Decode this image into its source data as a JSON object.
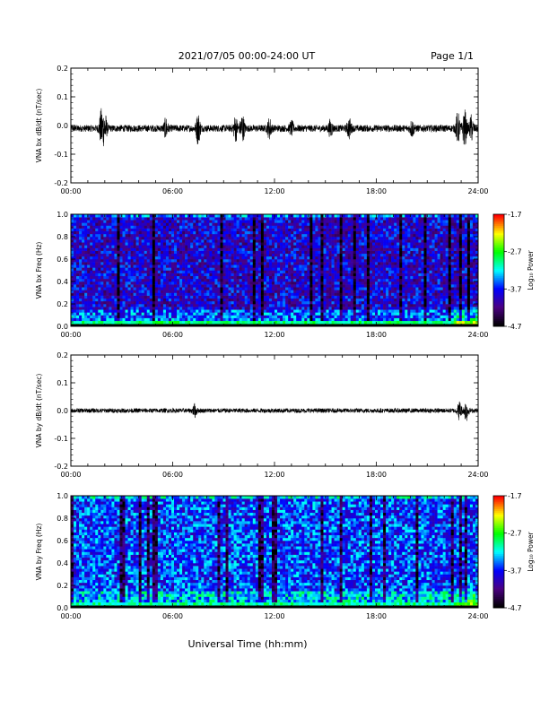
{
  "header": {
    "title": "2021/07/05  00:00-24:00 UT",
    "page": "Page 1/1"
  },
  "colorbar": {
    "label": "Log₁₀ Power",
    "ticks": [
      "-1.7",
      "-2.7",
      "-3.7",
      "-4.7"
    ],
    "range": [
      -4.7,
      -1.7
    ],
    "colors": [
      "#000000",
      "#4b0082",
      "#0000ff",
      "#00ffff",
      "#00ff00",
      "#ffff00",
      "#ff0000"
    ]
  },
  "x_title": "Universal Time (hh:mm)",
  "chart_data": [
    {
      "type": "line",
      "panel": "bx-dbdt",
      "ylabel": "VNA bx dB/dt (nT/sec)",
      "xlabel": "",
      "xlim": [
        0,
        24
      ],
      "ylim": [
        -0.2,
        0.2
      ],
      "xticks": [
        "00:00",
        "06:00",
        "12:00",
        "18:00",
        "24:00"
      ],
      "yticks": [
        "0.2",
        "0.1",
        "0.0",
        "-0.1",
        "-0.2"
      ],
      "series": [
        {
          "baseline": -0.01,
          "noise_amplitude": 0.012,
          "bursts": [
            {
              "t": 1.8,
              "amp": 0.06
            },
            {
              "t": 2.0,
              "amp": 0.05
            },
            {
              "t": 5.6,
              "amp": 0.03
            },
            {
              "t": 7.5,
              "amp": 0.05
            },
            {
              "t": 9.7,
              "amp": 0.04
            },
            {
              "t": 10.1,
              "amp": 0.05
            },
            {
              "t": 11.7,
              "amp": 0.03
            },
            {
              "t": 13.0,
              "amp": 0.02
            },
            {
              "t": 15.3,
              "amp": 0.025
            },
            {
              "t": 16.4,
              "amp": 0.03
            },
            {
              "t": 20.1,
              "amp": 0.025
            },
            {
              "t": 22.8,
              "amp": 0.05
            },
            {
              "t": 23.2,
              "amp": 0.06
            },
            {
              "t": 23.6,
              "amp": 0.04
            }
          ]
        }
      ]
    },
    {
      "type": "heatmap",
      "panel": "bx-spectrogram",
      "ylabel": "VNA bx Freq (Hz)",
      "xlabel": "",
      "xlim": [
        0,
        24
      ],
      "ylim": [
        0,
        1.0
      ],
      "xticks": [
        "00:00",
        "06:00",
        "12:00",
        "18:00",
        "24:00"
      ],
      "yticks": [
        "1.0",
        "0.8",
        "0.6",
        "0.4",
        "0.2",
        "0.0"
      ],
      "zlim": [
        -4.7,
        -1.7
      ],
      "typical_level": -3.9,
      "low_freq_enhancement": -2.9,
      "late_enhancement_start": 22.5
    },
    {
      "type": "line",
      "panel": "by-dbdt",
      "ylabel": "VNA by dB/dt (nT/sec)",
      "xlabel": "",
      "xlim": [
        0,
        24
      ],
      "ylim": [
        -0.2,
        0.2
      ],
      "xticks": [
        "00:00",
        "06:00",
        "12:00",
        "18:00",
        "24:00"
      ],
      "yticks": [
        "0.2",
        "0.1",
        "0.0",
        "-0.1",
        "-0.2"
      ],
      "series": [
        {
          "baseline": 0.0,
          "noise_amplitude": 0.008,
          "bursts": [
            {
              "t": 7.3,
              "amp": 0.02
            },
            {
              "t": 22.9,
              "amp": 0.03
            },
            {
              "t": 23.3,
              "amp": 0.035
            }
          ]
        }
      ]
    },
    {
      "type": "heatmap",
      "panel": "by-spectrogram",
      "ylabel": "VNA by Freq (Hz)",
      "xlabel": "Universal Time (hh:mm)",
      "xlim": [
        0,
        24
      ],
      "ylim": [
        0,
        1.0
      ],
      "xticks": [
        "00:00",
        "06:00",
        "12:00",
        "18:00",
        "24:00"
      ],
      "yticks": [
        "1.0",
        "0.8",
        "0.6",
        "0.4",
        "0.2",
        "0.0"
      ],
      "zlim": [
        -4.7,
        -1.7
      ],
      "typical_level": -3.6,
      "low_freq_enhancement": -3.0,
      "late_enhancement_start": 22.5
    }
  ]
}
